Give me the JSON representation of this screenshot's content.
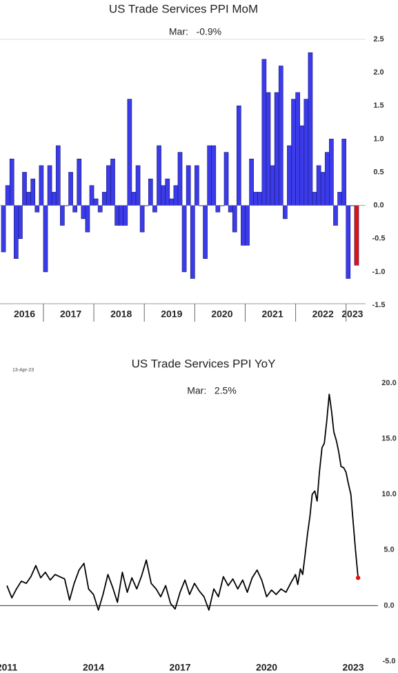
{
  "chart_data": [
    {
      "type": "bar",
      "title": "US Trade Services PPI MoM",
      "annotation": "Mar:   -0.9%",
      "color": "#3b3bea",
      "last_color": "#e01212",
      "categories": [
        null,
        null,
        null,
        null,
        null,
        "2016",
        null,
        null,
        null,
        null,
        null,
        null,
        null,
        null,
        null,
        null,
        "2017",
        null,
        null,
        null,
        null,
        null,
        null,
        null,
        null,
        null,
        null,
        null,
        "2018",
        null,
        null,
        null,
        null,
        null,
        null,
        null,
        null,
        null,
        null,
        null,
        "2019",
        null,
        null,
        null,
        null,
        null,
        null,
        null,
        null,
        null,
        null,
        null,
        "2020",
        null,
        null,
        null,
        null,
        null,
        null,
        null,
        null,
        null,
        null,
        null,
        "2021",
        null,
        null,
        null,
        null,
        null,
        null,
        null,
        null,
        null,
        null,
        null,
        "2022",
        null,
        null,
        null,
        null,
        null,
        null,
        "2023",
        null
      ],
      "values": [
        -0.7,
        0.3,
        0.7,
        -0.8,
        -0.5,
        0.5,
        0.2,
        0.4,
        -0.1,
        0.6,
        -1.0,
        0.6,
        0.2,
        0.9,
        -0.3,
        0.0,
        0.5,
        -0.1,
        0.7,
        -0.2,
        -0.4,
        0.3,
        0.1,
        -0.1,
        0.2,
        0.6,
        0.7,
        -0.3,
        -0.3,
        -0.3,
        1.6,
        0.2,
        0.6,
        -0.4,
        0.0,
        0.4,
        -0.1,
        0.9,
        0.3,
        0.4,
        0.1,
        0.3,
        0.8,
        -1.0,
        0.6,
        -1.1,
        0.6,
        0.0,
        -0.8,
        0.9,
        0.9,
        -0.1,
        0.0,
        0.8,
        -0.1,
        -0.4,
        1.5,
        -0.6,
        -0.6,
        0.7,
        0.2,
        0.2,
        2.2,
        1.7,
        0.6,
        1.7,
        2.1,
        -0.2,
        0.9,
        1.6,
        1.7,
        1.2,
        1.6,
        2.3,
        0.2,
        0.6,
        0.5,
        0.8,
        1.0,
        -0.3,
        0.2,
        1.0,
        -1.1,
        0.0,
        -0.9
      ],
      "ylim": [
        -1.5,
        2.5
      ],
      "yticks": [
        {
          "value": 2.5,
          "label": "2.5"
        },
        {
          "value": 2,
          "label": "2.0"
        },
        1.5,
        {
          "value": 1,
          "label": "1.0"
        },
        0.5,
        {
          "value": 0,
          "label": "0.0"
        },
        -0.5,
        {
          "value": -1,
          "label": "-1.0"
        },
        -1.5
      ]
    },
    {
      "type": "line",
      "title": "US Trade Services PPI YoY",
      "annotation": "Mar:   2.5%",
      "date_stamp": "13-Apr-23",
      "color": "#000000",
      "last_color": "#e01212",
      "x": [
        2011.0,
        2011.17,
        2011.33,
        2011.5,
        2011.67,
        2011.83,
        2012.0,
        2012.17,
        2012.33,
        2012.5,
        2012.67,
        2012.83,
        2013.0,
        2013.17,
        2013.33,
        2013.5,
        2013.67,
        2013.83,
        2014.0,
        2014.17,
        2014.33,
        2014.5,
        2014.67,
        2014.83,
        2015.0,
        2015.17,
        2015.33,
        2015.5,
        2015.67,
        2015.83,
        2016.0,
        2016.17,
        2016.33,
        2016.5,
        2016.67,
        2016.83,
        2017.0,
        2017.17,
        2017.33,
        2017.5,
        2017.67,
        2017.83,
        2018.0,
        2018.17,
        2018.33,
        2018.5,
        2018.67,
        2018.83,
        2019.0,
        2019.17,
        2019.33,
        2019.5,
        2019.67,
        2019.83,
        2020.0,
        2020.17,
        2020.33,
        2020.5,
        2020.67,
        2020.83,
        2021.0,
        2021.08,
        2021.17,
        2021.25,
        2021.33,
        2021.42,
        2021.5,
        2021.58,
        2021.67,
        2021.75,
        2021.83,
        2021.92,
        2022.0,
        2022.08,
        2022.17,
        2022.25,
        2022.33,
        2022.42,
        2022.5,
        2022.58,
        2022.67,
        2022.75,
        2022.83,
        2022.92,
        2023.0,
        2023.08,
        2023.17
      ],
      "values": [
        1.8,
        0.7,
        1.5,
        2.2,
        2.0,
        2.6,
        3.6,
        2.5,
        3.0,
        2.3,
        2.8,
        2.6,
        2.4,
        0.5,
        2.0,
        3.2,
        3.8,
        1.5,
        1.0,
        -0.4,
        1.0,
        2.8,
        1.6,
        0.3,
        3.0,
        1.2,
        2.5,
        1.5,
        2.7,
        4.1,
        2.0,
        1.5,
        0.8,
        1.8,
        0.2,
        -0.3,
        1.2,
        2.3,
        1.0,
        2.0,
        1.3,
        0.8,
        -0.4,
        1.5,
        0.8,
        2.6,
        1.8,
        2.4,
        1.5,
        2.3,
        1.2,
        2.5,
        3.2,
        2.3,
        0.8,
        1.4,
        1.0,
        1.5,
        1.2,
        2.0,
        2.8,
        1.9,
        3.3,
        2.8,
        4.5,
        6.5,
        8.0,
        10.0,
        10.3,
        9.4,
        12.0,
        14.2,
        14.6,
        16.5,
        19.0,
        17.5,
        15.6,
        14.8,
        13.8,
        12.5,
        12.4,
        12.0,
        11.0,
        10.0,
        7.5,
        5.0,
        2.5
      ],
      "xlim": [
        2010.76,
        2023.86
      ],
      "xticks": [
        2011,
        2014,
        2017,
        2020,
        2023
      ],
      "ylim": [
        -5,
        20
      ],
      "yticks": [
        {
          "value": 20,
          "label": "20.0"
        },
        {
          "value": 15,
          "label": "15.0"
        },
        {
          "value": 10,
          "label": "10.0"
        },
        {
          "value": 5,
          "label": "5.0"
        },
        {
          "value": 0,
          "label": "0.0"
        },
        {
          "value": -5,
          "label": "-5.0"
        }
      ]
    }
  ]
}
